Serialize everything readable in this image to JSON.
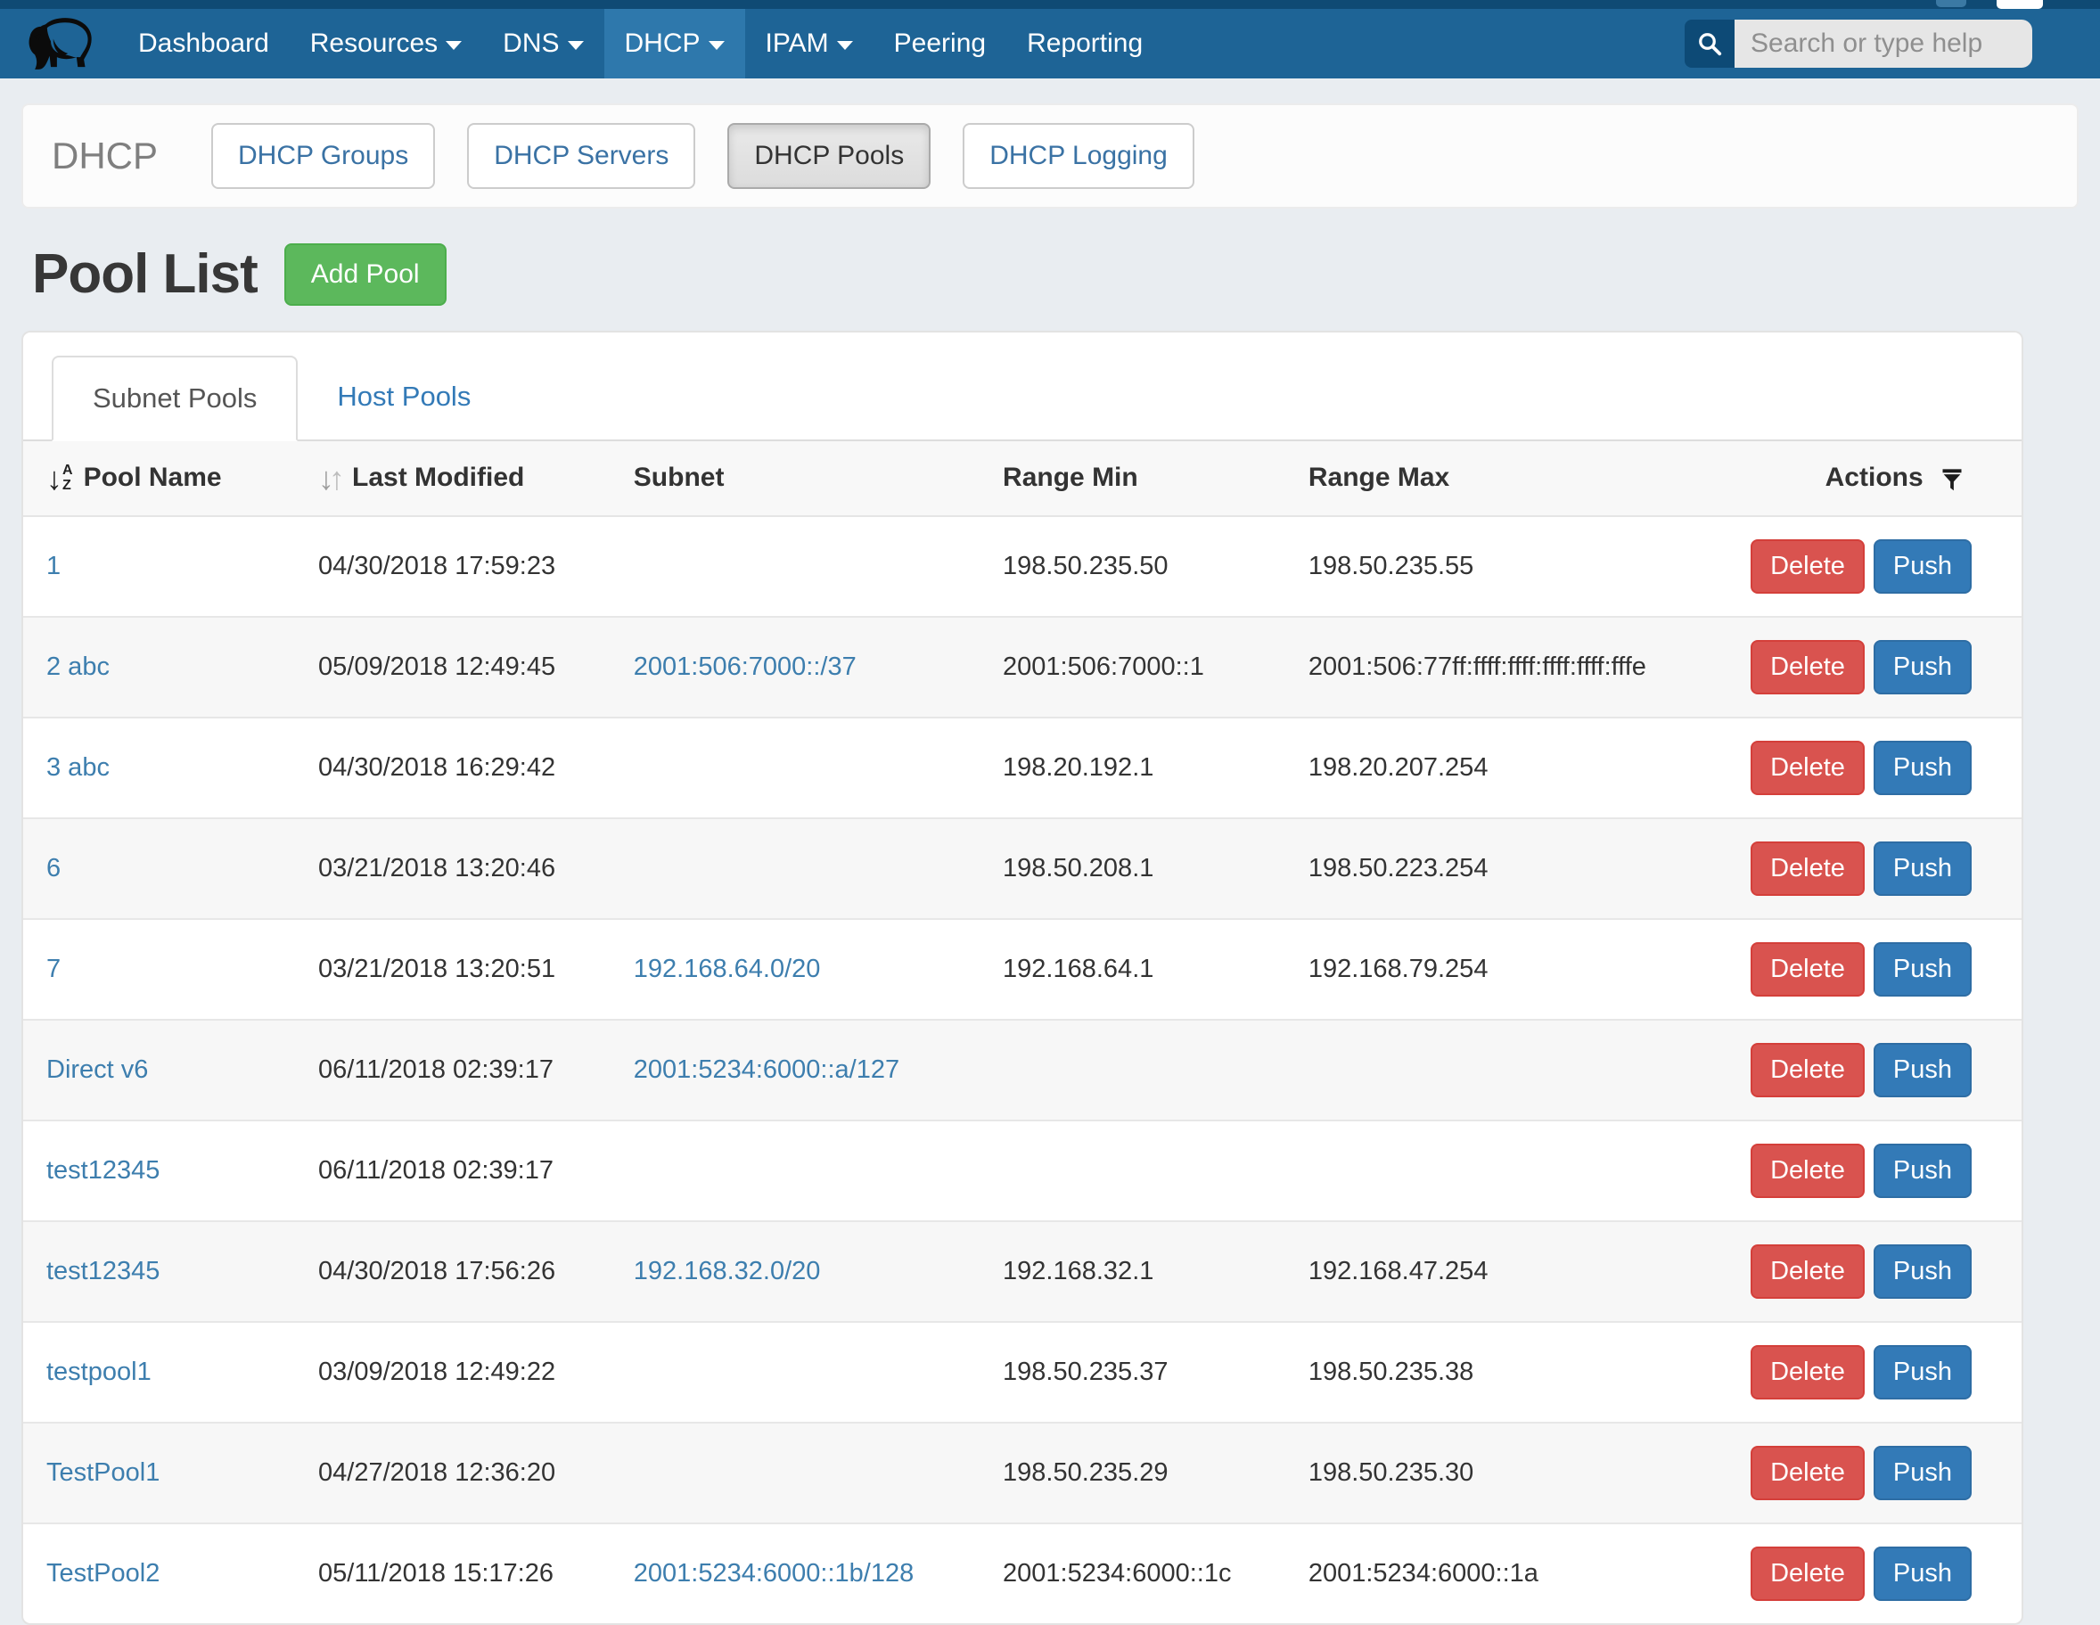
{
  "nav": {
    "items": [
      {
        "label": "Dashboard",
        "caret": false,
        "active": false
      },
      {
        "label": "Resources",
        "caret": true,
        "active": false
      },
      {
        "label": "DNS",
        "caret": true,
        "active": false
      },
      {
        "label": "DHCP",
        "caret": true,
        "active": true
      },
      {
        "label": "IPAM",
        "caret": true,
        "active": false
      },
      {
        "label": "Peering",
        "caret": false,
        "active": false
      },
      {
        "label": "Reporting",
        "caret": false,
        "active": false
      }
    ],
    "search_placeholder": "Search or type help"
  },
  "subnav": {
    "title": "DHCP",
    "buttons": [
      {
        "label": "DHCP Groups",
        "active": false
      },
      {
        "label": "DHCP Servers",
        "active": false
      },
      {
        "label": "DHCP Pools",
        "active": true
      },
      {
        "label": "DHCP Logging",
        "active": false
      }
    ]
  },
  "page": {
    "title": "Pool List",
    "add_button": "Add Pool"
  },
  "tabs": [
    {
      "label": "Subnet Pools",
      "active": true
    },
    {
      "label": "Host Pools",
      "active": false
    }
  ],
  "table": {
    "headers": [
      "Pool Name",
      "Last Modified",
      "Subnet",
      "Range Min",
      "Range Max",
      "Actions"
    ],
    "actions": {
      "delete": "Delete",
      "push": "Push"
    },
    "rows": [
      {
        "name": "1",
        "modified": "04/30/2018 17:59:23",
        "subnet": "",
        "range_min": "198.50.235.50",
        "range_max": "198.50.235.55"
      },
      {
        "name": "2 abc",
        "modified": "05/09/2018 12:49:45",
        "subnet": "2001:506:7000::/37",
        "range_min": "2001:506:7000::1",
        "range_max": "2001:506:77ff:ffff:ffff:ffff:ffff:fffe"
      },
      {
        "name": "3 abc",
        "modified": "04/30/2018 16:29:42",
        "subnet": "",
        "range_min": "198.20.192.1",
        "range_max": "198.20.207.254"
      },
      {
        "name": "6",
        "modified": "03/21/2018 13:20:46",
        "subnet": "",
        "range_min": "198.50.208.1",
        "range_max": "198.50.223.254"
      },
      {
        "name": "7",
        "modified": "03/21/2018 13:20:51",
        "subnet": "192.168.64.0/20",
        "range_min": "192.168.64.1",
        "range_max": "192.168.79.254"
      },
      {
        "name": "Direct v6",
        "modified": "06/11/2018 02:39:17",
        "subnet": "2001:5234:6000::a/127",
        "range_min": "",
        "range_max": ""
      },
      {
        "name": "test12345",
        "modified": "06/11/2018 02:39:17",
        "subnet": "",
        "range_min": "",
        "range_max": ""
      },
      {
        "name": "test12345",
        "modified": "04/30/2018 17:56:26",
        "subnet": "192.168.32.0/20",
        "range_min": "192.168.32.1",
        "range_max": "192.168.47.254"
      },
      {
        "name": "testpool1",
        "modified": "03/09/2018 12:49:22",
        "subnet": "",
        "range_min": "198.50.235.37",
        "range_max": "198.50.235.38"
      },
      {
        "name": "TestPool1",
        "modified": "04/27/2018 12:36:20",
        "subnet": "",
        "range_min": "198.50.235.29",
        "range_max": "198.50.235.30"
      },
      {
        "name": "TestPool2",
        "modified": "05/11/2018 15:17:26",
        "subnet": "2001:5234:6000::1b/128",
        "range_min": "2001:5234:6000::1c",
        "range_max": "2001:5234:6000::1a"
      }
    ]
  },
  "colors": {
    "nav_bg": "#1e6496",
    "nav_active_bg": "#2e78ac",
    "top_strip": "#0f4a74",
    "page_bg": "#e9edf1",
    "link": "#3d7eae",
    "green": "#5cb85c",
    "red": "#d9534f",
    "blue": "#337ab7"
  }
}
